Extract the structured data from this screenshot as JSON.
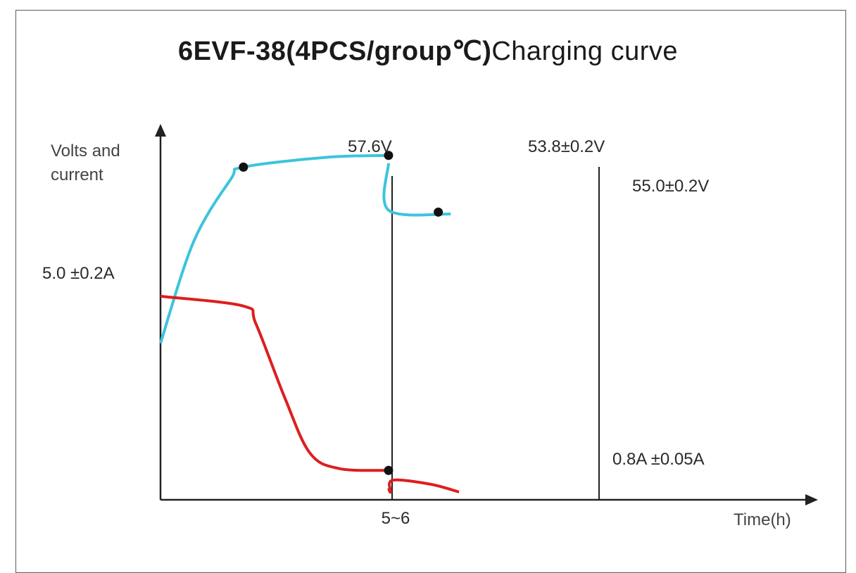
{
  "chart_data": {
    "type": "line",
    "title_bold": "6EVF-38(4PCS/group℃)",
    "title_rest": "Charging curve",
    "ylabel": [
      "Volts and",
      "current"
    ],
    "xlabel": "Time(h)",
    "x_ticks": [
      "5~6"
    ],
    "colors": {
      "voltage": "#3cc4dc",
      "current": "#dd1e1e",
      "axis": "#222222"
    },
    "annotations": {
      "v_peak": "57.6V",
      "v_end_charge": "53.8±0.2V",
      "v_float": "55.0±0.2V",
      "i_initial": "5.0 ±0.2A",
      "i_end": "0.8A ±0.05A"
    },
    "series": [
      {
        "key": "voltage",
        "segments": [
          [
            [
              0,
              0.4
            ],
            [
              0.8,
              0.66
            ],
            [
              1.7,
              0.82
            ],
            [
              2.0,
              0.85
            ],
            [
              4.0,
              0.875
            ],
            [
              5.5,
              0.88
            ]
          ],
          [
            [
              5.5,
              0.86
            ],
            [
              5.5,
              0.74
            ],
            [
              7.0,
              0.73
            ]
          ]
        ],
        "markers": [
          [
            2.0,
            0.85
          ],
          [
            5.5,
            0.88
          ],
          [
            6.7,
            0.735
          ]
        ]
      },
      {
        "key": "current",
        "segments": [
          [
            [
              0,
              0.52
            ],
            [
              2.0,
              0.495
            ],
            [
              2.3,
              0.45
            ],
            [
              3.0,
              0.26
            ],
            [
              3.6,
              0.12
            ],
            [
              4.3,
              0.08
            ],
            [
              5.5,
              0.075
            ]
          ],
          [
            [
              5.5,
              0.03
            ],
            [
              5.55,
              0.02
            ],
            [
              5.6,
              0.05
            ],
            [
              6.5,
              0.04
            ],
            [
              7.2,
              0.02
            ]
          ]
        ],
        "markers": [
          [
            5.5,
            0.075
          ]
        ]
      }
    ]
  }
}
